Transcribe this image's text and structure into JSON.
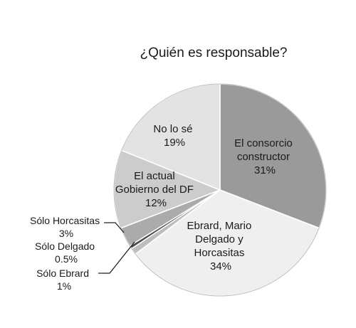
{
  "chart_data": {
    "type": "pie",
    "title": "¿Quién es responsable?",
    "slices": [
      {
        "label": "El consorcio constructor",
        "value": 31,
        "display": "31%",
        "color": "#9a9a9a"
      },
      {
        "label": "Ebrard, Mario Delgado y Horcasitas",
        "value": 34,
        "display": "34%",
        "color": "#efefef"
      },
      {
        "label": "Sólo Ebrard",
        "value": 1,
        "display": "1%",
        "color": "#bdbdbd"
      },
      {
        "label": "Sólo Delgado",
        "value": 0.5,
        "display": "0.5%",
        "color": "#4a4a4a"
      },
      {
        "label": "Sólo Horcasitas",
        "value": 3,
        "display": "3%",
        "color": "#ababab"
      },
      {
        "label": "El actual Gobierno del DF",
        "value": 12,
        "display": "12%",
        "color": "#cccccc"
      },
      {
        "label": "No lo sé",
        "value": 19,
        "display": "19%",
        "color": "#e3e3e3"
      }
    ]
  },
  "texts": {
    "consorcio": [
      "El consorcio",
      "constructor",
      "31%"
    ],
    "ebrard_delgado": [
      "Ebrard, Mario",
      "Delgado y",
      "Horcasitas",
      "34%"
    ],
    "gobierno": [
      "El actual",
      "Gobierno del DF",
      "12%"
    ],
    "nolose": [
      "No lo sé",
      "19%"
    ],
    "horcasitas": [
      "Sólo Horcasitas",
      "3%"
    ],
    "delgado": [
      "Sólo Delgado",
      "0.5%"
    ],
    "ebrard": [
      "Sólo Ebrard",
      "1%"
    ]
  }
}
